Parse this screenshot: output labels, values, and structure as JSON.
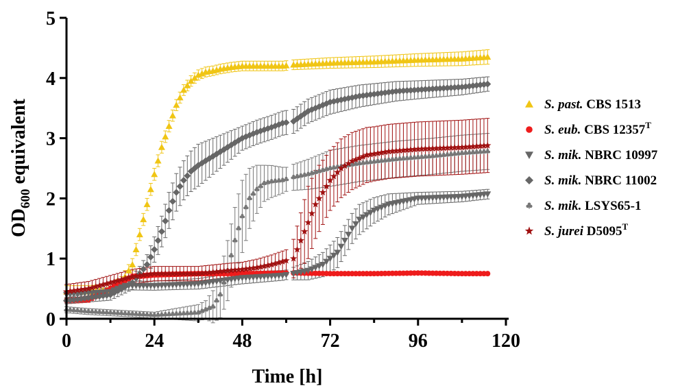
{
  "chart_data": {
    "type": "scatter",
    "title": "",
    "xlabel": "Time [h]",
    "ylabel_main": "OD",
    "ylabel_sub": "600",
    "ylabel_rest": " equivalent",
    "xlim": [
      0,
      120
    ],
    "ylim": [
      0,
      5
    ],
    "xticks": [
      "0",
      "24",
      "48",
      "72",
      "96",
      "120"
    ],
    "yticks": [
      "0",
      "1",
      "2",
      "3",
      "4",
      "5"
    ],
    "grid": false,
    "legend_position": "right",
    "gap": [
      60,
      62
    ],
    "series": [
      {
        "name_italic": "S. past.",
        "name_rest": " CBS 1513",
        "name_sup": "",
        "color": "#F0C514",
        "marker": "triangle-up",
        "points": [
          [
            0,
            0.45
          ],
          [
            6,
            0.45
          ],
          [
            12,
            0.48
          ],
          [
            15,
            0.6
          ],
          [
            18,
            0.9
          ],
          [
            20,
            1.4
          ],
          [
            22,
            1.9
          ],
          [
            24,
            2.4
          ],
          [
            26,
            2.85
          ],
          [
            28,
            3.2
          ],
          [
            30,
            3.55
          ],
          [
            32,
            3.8
          ],
          [
            34,
            3.95
          ],
          [
            36,
            4.05
          ],
          [
            38,
            4.1
          ],
          [
            40,
            4.12
          ],
          [
            42,
            4.15
          ],
          [
            45,
            4.18
          ],
          [
            48,
            4.2
          ],
          [
            54,
            4.2
          ],
          [
            59,
            4.2
          ],
          [
            62,
            4.22
          ],
          [
            72,
            4.25
          ],
          [
            84,
            4.27
          ],
          [
            96,
            4.3
          ],
          [
            108,
            4.32
          ],
          [
            115,
            4.35
          ]
        ],
        "error": [
          [
            0,
            0.1
          ],
          [
            12,
            0.1
          ],
          [
            24,
            0.1
          ],
          [
            40,
            0.08
          ],
          [
            60,
            0.08
          ],
          [
            90,
            0.1
          ],
          [
            115,
            0.12
          ]
        ]
      },
      {
        "name_italic": "S. eub.",
        "name_rest": " CBS 12357",
        "name_sup": "T",
        "color": "#EE1C1C",
        "marker": "circle",
        "points": [
          [
            0,
            0.3
          ],
          [
            6,
            0.32
          ],
          [
            12,
            0.5
          ],
          [
            15,
            0.6
          ],
          [
            18,
            0.7
          ],
          [
            24,
            0.73
          ],
          [
            36,
            0.75
          ],
          [
            48,
            0.75
          ],
          [
            59,
            0.76
          ],
          [
            62,
            0.76
          ],
          [
            72,
            0.75
          ],
          [
            84,
            0.75
          ],
          [
            96,
            0.76
          ],
          [
            108,
            0.75
          ],
          [
            115,
            0.75
          ]
        ],
        "error": [
          [
            0,
            0.05
          ],
          [
            24,
            0.04
          ],
          [
            60,
            0.03
          ],
          [
            115,
            0.03
          ]
        ]
      },
      {
        "name_italic": "S. mik.",
        "name_rest": " NBRC 10997",
        "name_sup": "",
        "color": "#666666",
        "marker": "triangle-down",
        "points": [
          [
            0,
            0.4
          ],
          [
            12,
            0.45
          ],
          [
            16,
            0.55
          ],
          [
            24,
            0.55
          ],
          [
            36,
            0.58
          ],
          [
            48,
            0.68
          ],
          [
            59,
            0.72
          ],
          [
            62,
            0.75
          ],
          [
            66,
            0.8
          ],
          [
            70,
            0.9
          ],
          [
            74,
            1.1
          ],
          [
            76,
            1.3
          ],
          [
            78,
            1.5
          ],
          [
            80,
            1.65
          ],
          [
            84,
            1.8
          ],
          [
            88,
            1.9
          ],
          [
            96,
            2.0
          ],
          [
            108,
            2.03
          ],
          [
            115,
            2.07
          ]
        ],
        "error": [
          [
            0,
            0.06
          ],
          [
            30,
            0.08
          ],
          [
            48,
            0.1
          ],
          [
            60,
            0.08
          ],
          [
            74,
            0.25
          ],
          [
            80,
            0.25
          ],
          [
            96,
            0.1
          ],
          [
            115,
            0.08
          ]
        ]
      },
      {
        "name_italic": "S. mik.",
        "name_rest": " NBRC 11002",
        "name_sup": "",
        "color": "#666666",
        "marker": "diamond",
        "points": [
          [
            0,
            0.3
          ],
          [
            12,
            0.4
          ],
          [
            15,
            0.5
          ],
          [
            18,
            0.6
          ],
          [
            20,
            0.75
          ],
          [
            22,
            0.9
          ],
          [
            24,
            1.15
          ],
          [
            26,
            1.45
          ],
          [
            28,
            1.8
          ],
          [
            30,
            2.1
          ],
          [
            32,
            2.3
          ],
          [
            34,
            2.45
          ],
          [
            36,
            2.55
          ],
          [
            40,
            2.7
          ],
          [
            44,
            2.85
          ],
          [
            48,
            3.0
          ],
          [
            52,
            3.1
          ],
          [
            56,
            3.18
          ],
          [
            59,
            3.25
          ],
          [
            62,
            3.28
          ],
          [
            66,
            3.45
          ],
          [
            72,
            3.6
          ],
          [
            80,
            3.7
          ],
          [
            90,
            3.78
          ],
          [
            100,
            3.82
          ],
          [
            108,
            3.85
          ],
          [
            115,
            3.9
          ]
        ],
        "error": [
          [
            0,
            0.05
          ],
          [
            20,
            0.12
          ],
          [
            28,
            0.3
          ],
          [
            36,
            0.35
          ],
          [
            48,
            0.2
          ],
          [
            60,
            0.2
          ],
          [
            72,
            0.2
          ],
          [
            96,
            0.15
          ],
          [
            115,
            0.12
          ]
        ]
      },
      {
        "name_italic": "S. mik.",
        "name_rest": " LSYS65-1",
        "name_sup": "",
        "color": "#777777",
        "marker": "club",
        "points": [
          [
            0,
            0.15
          ],
          [
            6,
            0.12
          ],
          [
            12,
            0.1
          ],
          [
            18,
            0.08
          ],
          [
            24,
            0.06
          ],
          [
            30,
            0.08
          ],
          [
            36,
            0.1
          ],
          [
            38,
            0.15
          ],
          [
            40,
            0.2
          ],
          [
            42,
            0.4
          ],
          [
            44,
            0.8
          ],
          [
            46,
            1.3
          ],
          [
            48,
            1.7
          ],
          [
            50,
            2.0
          ],
          [
            52,
            2.15
          ],
          [
            54,
            2.25
          ],
          [
            56,
            2.28
          ],
          [
            59,
            2.3
          ],
          [
            62,
            2.35
          ],
          [
            66,
            2.4
          ],
          [
            72,
            2.5
          ],
          [
            80,
            2.58
          ],
          [
            90,
            2.65
          ],
          [
            100,
            2.7
          ],
          [
            108,
            2.75
          ],
          [
            115,
            2.78
          ]
        ],
        "error": [
          [
            0,
            0.05
          ],
          [
            24,
            0.05
          ],
          [
            38,
            0.15
          ],
          [
            44,
            0.5
          ],
          [
            48,
            0.6
          ],
          [
            54,
            0.3
          ],
          [
            60,
            0.2
          ],
          [
            72,
            0.3
          ],
          [
            96,
            0.3
          ],
          [
            115,
            0.3
          ]
        ]
      },
      {
        "name_italic": "S. jurei",
        "name_rest": " D5095",
        "name_sup": "T",
        "color": "#A01010",
        "marker": "star",
        "points": [
          [
            0,
            0.45
          ],
          [
            6,
            0.5
          ],
          [
            12,
            0.6
          ],
          [
            18,
            0.7
          ],
          [
            24,
            0.75
          ],
          [
            36,
            0.75
          ],
          [
            44,
            0.8
          ],
          [
            48,
            0.82
          ],
          [
            52,
            0.85
          ],
          [
            56,
            0.9
          ],
          [
            59,
            0.95
          ],
          [
            62,
            1.0
          ],
          [
            64,
            1.3
          ],
          [
            66,
            1.6
          ],
          [
            68,
            1.9
          ],
          [
            70,
            2.1
          ],
          [
            72,
            2.3
          ],
          [
            75,
            2.5
          ],
          [
            78,
            2.62
          ],
          [
            82,
            2.72
          ],
          [
            88,
            2.78
          ],
          [
            96,
            2.82
          ],
          [
            108,
            2.85
          ],
          [
            115,
            2.88
          ]
        ],
        "error": [
          [
            0,
            0.12
          ],
          [
            24,
            0.12
          ],
          [
            48,
            0.12
          ],
          [
            60,
            0.18
          ],
          [
            66,
            0.6
          ],
          [
            72,
            0.5
          ],
          [
            84,
            0.45
          ],
          [
            100,
            0.45
          ],
          [
            115,
            0.45
          ]
        ]
      }
    ]
  }
}
